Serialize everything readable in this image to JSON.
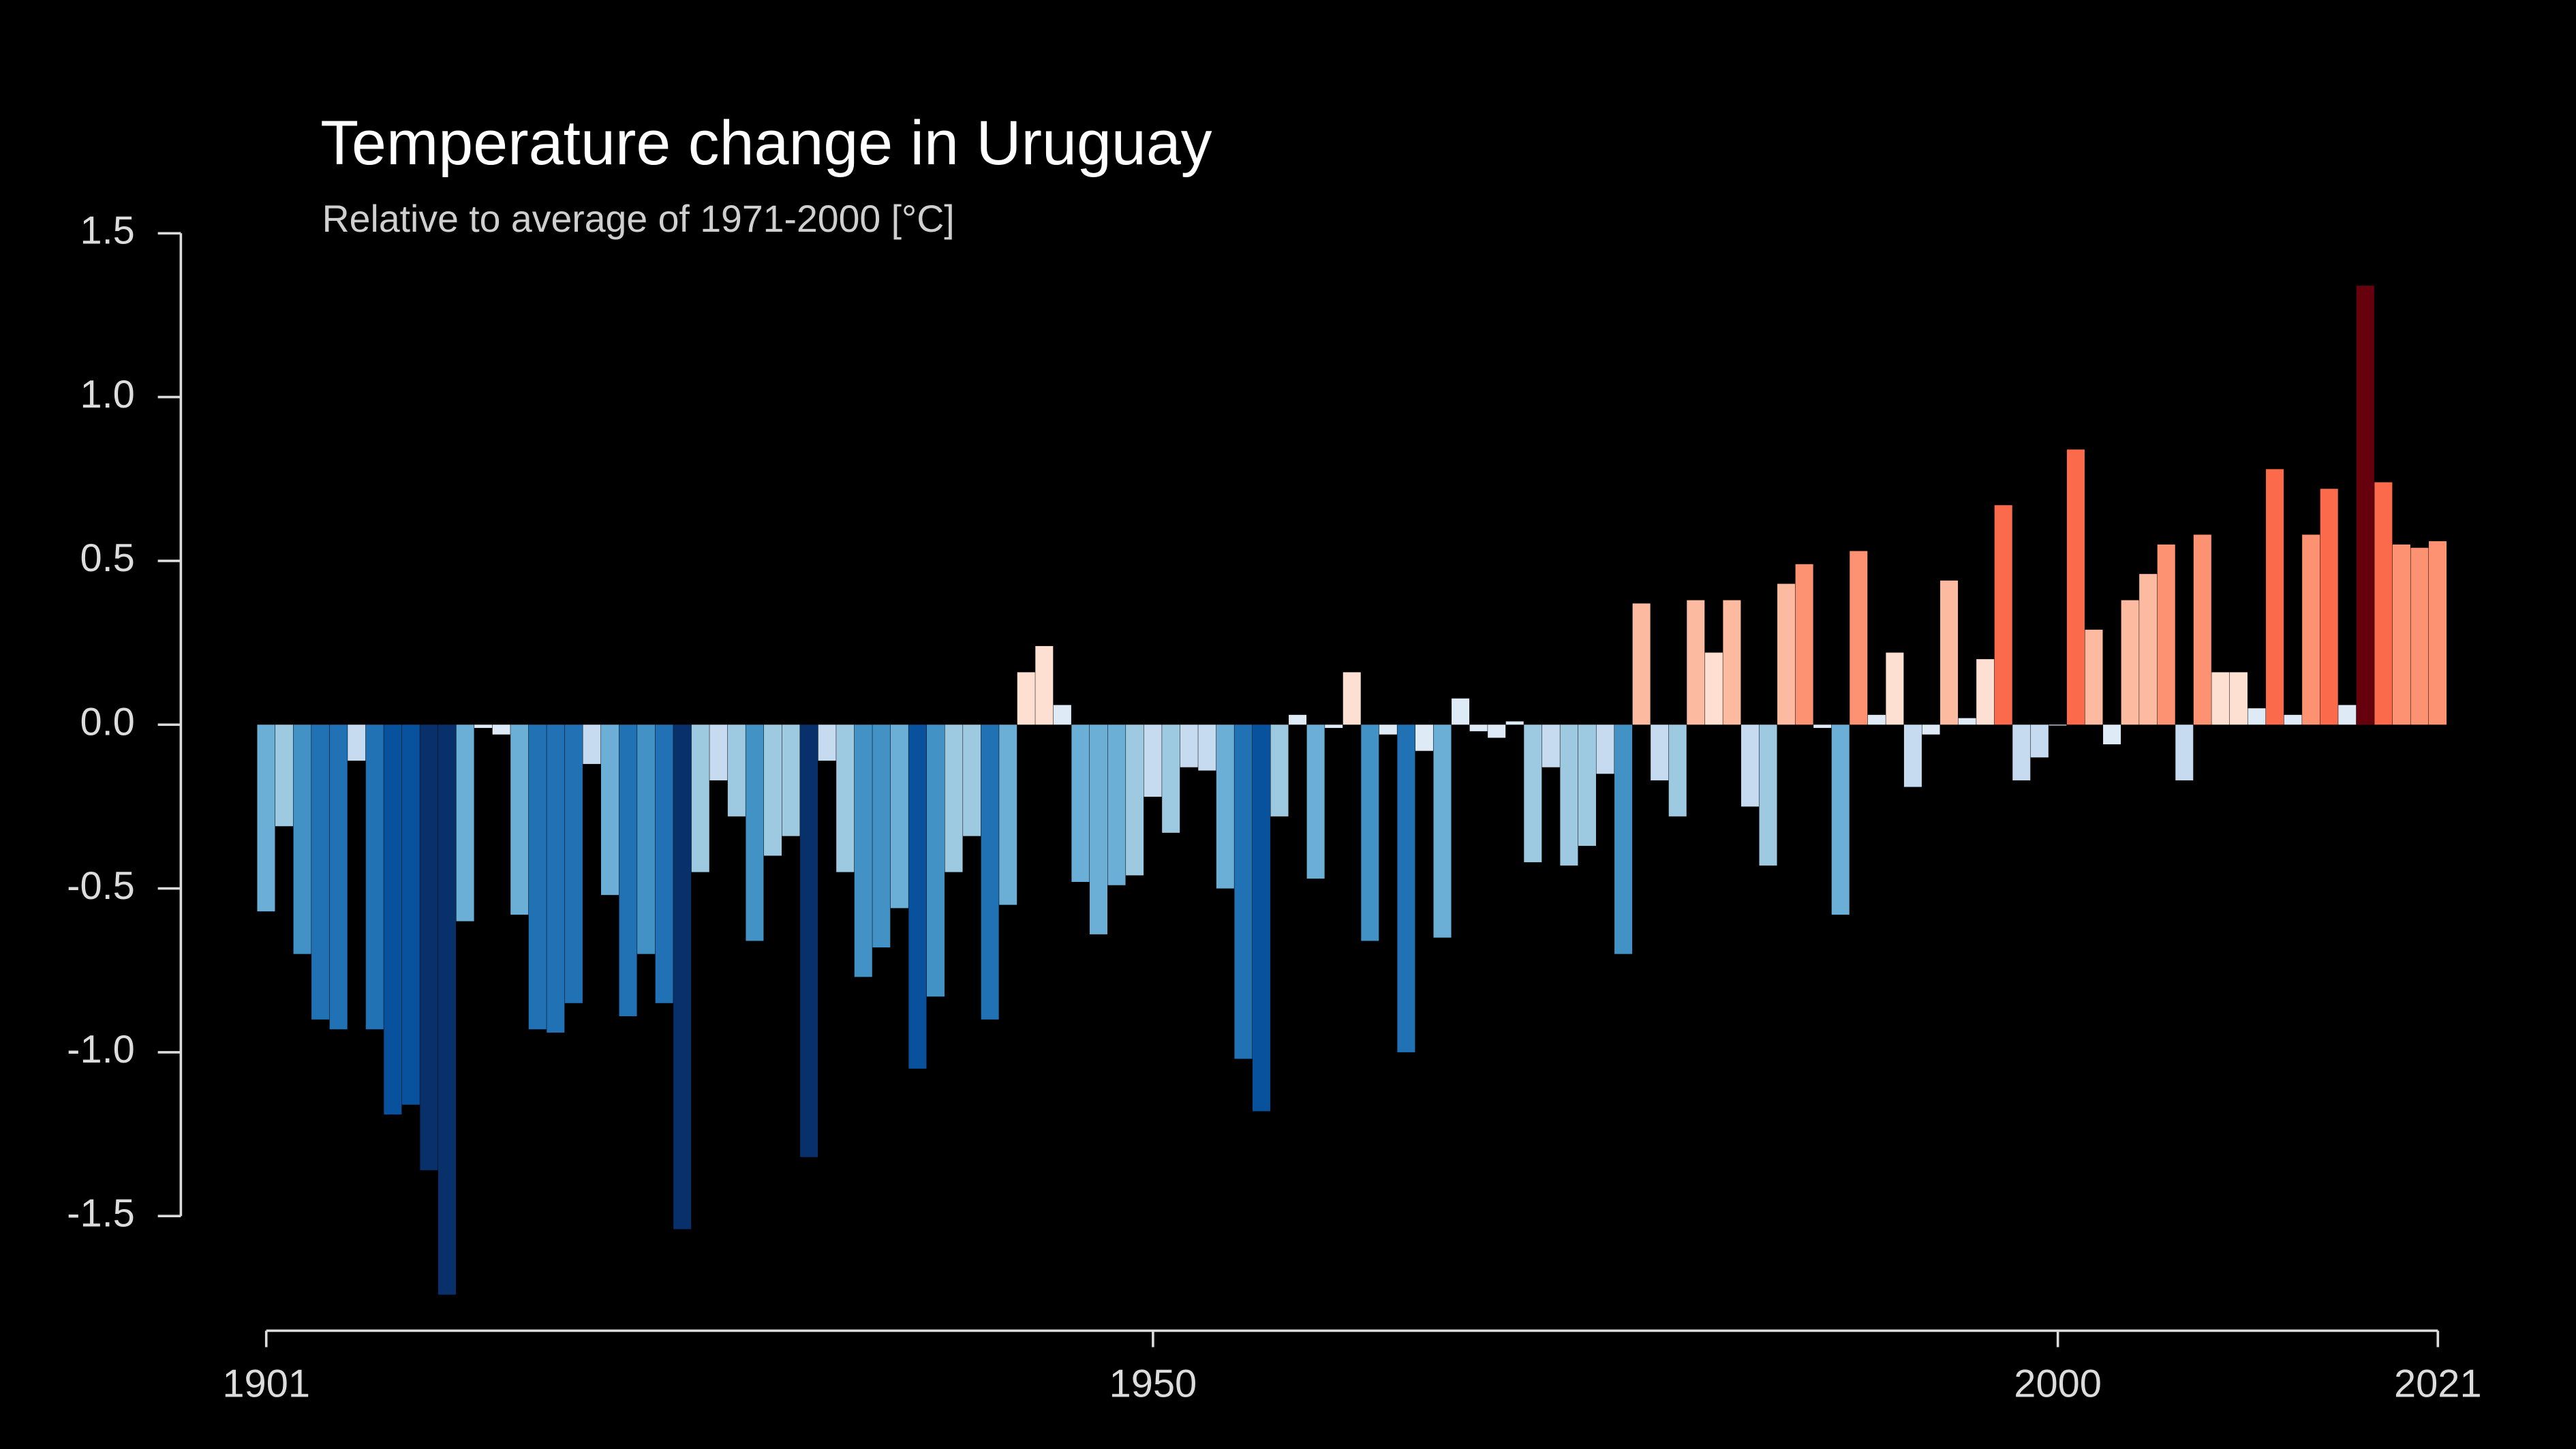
{
  "chart_data": {
    "type": "bar",
    "title": "Temperature change in Uruguay",
    "subtitle": "Relative to average of 1971-2000  [°C]",
    "x": [
      1901,
      1902,
      1903,
      1904,
      1905,
      1906,
      1907,
      1908,
      1909,
      1910,
      1911,
      1912,
      1913,
      1914,
      1915,
      1916,
      1917,
      1918,
      1919,
      1920,
      1921,
      1922,
      1923,
      1924,
      1925,
      1926,
      1927,
      1928,
      1929,
      1930,
      1931,
      1932,
      1933,
      1934,
      1935,
      1936,
      1937,
      1938,
      1939,
      1940,
      1941,
      1942,
      1943,
      1944,
      1945,
      1946,
      1947,
      1948,
      1949,
      1950,
      1951,
      1952,
      1953,
      1954,
      1955,
      1956,
      1957,
      1958,
      1959,
      1960,
      1961,
      1962,
      1963,
      1964,
      1965,
      1966,
      1967,
      1968,
      1969,
      1970,
      1971,
      1972,
      1973,
      1974,
      1975,
      1976,
      1977,
      1978,
      1979,
      1980,
      1981,
      1982,
      1983,
      1984,
      1985,
      1986,
      1987,
      1988,
      1989,
      1990,
      1991,
      1992,
      1993,
      1994,
      1995,
      1996,
      1997,
      1998,
      1999,
      2000,
      2001,
      2002,
      2003,
      2004,
      2005,
      2006,
      2007,
      2008,
      2009,
      2010,
      2011,
      2012,
      2013,
      2014,
      2015,
      2016,
      2017,
      2018,
      2019,
      2020,
      2021
    ],
    "values": [
      -0.57,
      -0.31,
      -0.7,
      -0.9,
      -0.93,
      -0.11,
      -0.93,
      -1.19,
      -1.16,
      -1.36,
      -1.74,
      -0.6,
      -0.01,
      -0.03,
      -0.58,
      -0.93,
      -0.94,
      -0.85,
      -0.12,
      -0.52,
      -0.89,
      -0.7,
      -0.85,
      -1.54,
      -0.45,
      -0.17,
      -0.28,
      -0.66,
      -0.4,
      -0.34,
      -1.32,
      -0.11,
      -0.45,
      -0.77,
      -0.68,
      -0.56,
      -1.05,
      -0.83,
      -0.45,
      -0.34,
      -0.9,
      -0.55,
      0.16,
      0.24,
      0.06,
      -0.48,
      -0.64,
      -0.49,
      -0.46,
      -0.22,
      -0.33,
      -0.13,
      -0.14,
      -0.5,
      -1.02,
      -1.18,
      -0.28,
      0.03,
      -0.47,
      -0.01,
      0.16,
      -0.66,
      -0.03,
      -1.0,
      -0.08,
      -0.65,
      0.08,
      -0.02,
      -0.04,
      0.01,
      -0.42,
      -0.13,
      -0.43,
      -0.37,
      -0.15,
      -0.7,
      0.37,
      -0.17,
      -0.28,
      0.38,
      0.22,
      0.38,
      -0.25,
      -0.43,
      0.43,
      0.49,
      -0.01,
      -0.58,
      0.53,
      0.03,
      0.22,
      -0.19,
      -0.03,
      0.44,
      0.02,
      0.2,
      0.67,
      -0.17,
      -0.1,
      0.0,
      0.84,
      0.29,
      -0.06,
      0.38,
      0.46,
      0.55,
      -0.17,
      0.58,
      0.16,
      0.16,
      0.05,
      0.78,
      0.03,
      0.58,
      0.72,
      0.06,
      1.34,
      0.74,
      0.55,
      0.54,
      0.56
    ],
    "colormap": [
      "#08306b",
      "#08519c",
      "#2171b5",
      "#4292c6",
      "#6baed6",
      "#9ecae1",
      "#c6dbef",
      "#deebf7",
      "#fee0d2",
      "#fcbba1",
      "#fc9272",
      "#fb6a4a",
      "#ef3b2c",
      "#cb181d",
      "#67000d"
    ],
    "color_range": [
      -1.4,
      1.4
    ],
    "xlim": [
      1901,
      2021
    ],
    "xticks": [
      1901,
      1950,
      2000,
      2021
    ],
    "ylim": [
      -1.85,
      1.5
    ],
    "yticks": [
      1.5,
      {
        "value": 1.0,
        "label": "1.0"
      },
      0.5,
      {
        "value": 0.0,
        "label": "0.0"
      },
      -0.5,
      {
        "value": -1.0,
        "label": "-1.0"
      },
      -1.5
    ]
  }
}
